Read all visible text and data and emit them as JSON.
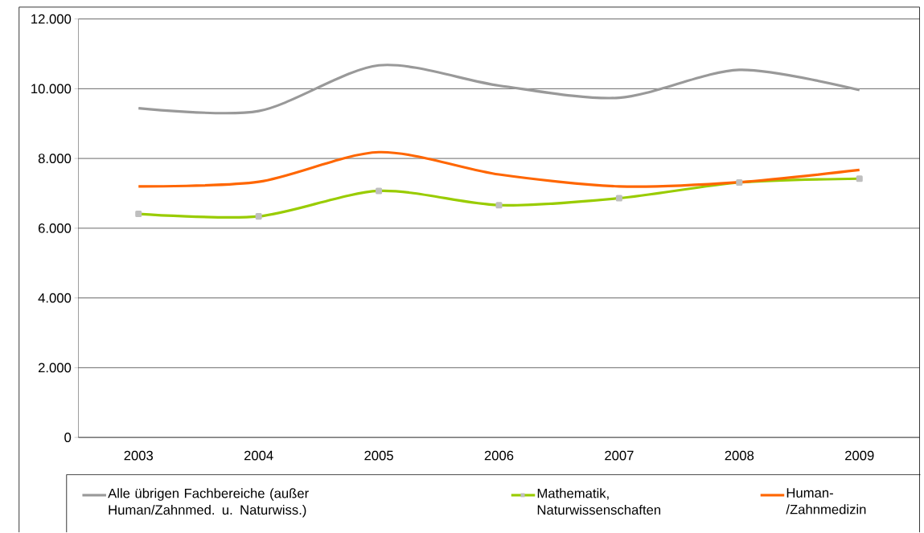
{
  "chart_data": {
    "type": "line",
    "categories": [
      "2003",
      "2004",
      "2005",
      "2006",
      "2007",
      "2008",
      "2009"
    ],
    "series": [
      {
        "name": "Alle übrigen Fachbereiche (außer Human/Zahnmed. u. Naturwiss.)",
        "color": "#999999",
        "values": [
          9440,
          9360,
          10670,
          10090,
          9740,
          10540,
          9960
        ]
      },
      {
        "name": "Mathematik, Naturwissenschaften",
        "color": "#99cc00",
        "marker": "square",
        "values": [
          6410,
          6340,
          7070,
          6660,
          6860,
          7310,
          7420
        ]
      },
      {
        "name": "Human-/Zahnmedizin",
        "color": "#ff6600",
        "values": [
          7200,
          7330,
          8180,
          7540,
          7200,
          7320,
          7670
        ]
      }
    ],
    "ylim": [
      0,
      12000
    ],
    "yticks": [
      0,
      {
        "value": 2000,
        "label": "2.000"
      },
      {
        "value": 4000,
        "label": "4.000"
      },
      {
        "value": 6000,
        "label": "6.000"
      },
      {
        "value": 8000,
        "label": "8.000"
      },
      {
        "value": 10000,
        "label": "10.000"
      },
      {
        "value": 12000,
        "label": "12.000"
      }
    ],
    "grid": "y",
    "legend": "bottom"
  }
}
